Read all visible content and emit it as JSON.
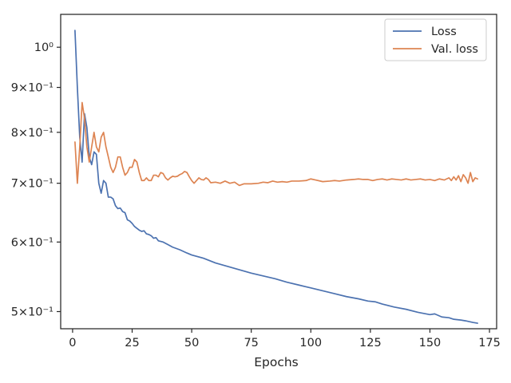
{
  "chart_data": {
    "type": "line",
    "title": "",
    "xlabel": "Epochs",
    "ylabel": "",
    "yscale": "log",
    "xlim": [
      -5,
      178
    ],
    "ylim": [
      0.478,
      1.09
    ],
    "x_ticks": [
      0,
      25,
      50,
      75,
      100,
      125,
      150,
      175
    ],
    "x_tick_labels": [
      "0",
      "25",
      "50",
      "75",
      "100",
      "125",
      "150",
      "175"
    ],
    "y_ticks": [
      0.5,
      0.6,
      0.7,
      0.8,
      0.9,
      1.0
    ],
    "y_tick_labels": [
      "5×10⁻¹",
      "6×10⁻¹",
      "7×10⁻¹",
      "8×10⁻¹",
      "9×10⁻¹",
      "10⁰"
    ],
    "grid": false,
    "legend": {
      "position": "top-right",
      "entries": [
        "Loss",
        "Val. loss"
      ]
    },
    "series": [
      {
        "name": "Loss",
        "color": "#4c72b0",
        "x": [
          1,
          2,
          3,
          4,
          5,
          6,
          7,
          8,
          9,
          10,
          11,
          12,
          13,
          14,
          15,
          16,
          17,
          18,
          19,
          20,
          21,
          22,
          23,
          24,
          25,
          26,
          27,
          28,
          29,
          30,
          31,
          32,
          33,
          34,
          35,
          36,
          38,
          40,
          42,
          45,
          48,
          50,
          55,
          60,
          65,
          70,
          75,
          80,
          85,
          90,
          95,
          100,
          105,
          110,
          115,
          120,
          124,
          127,
          130,
          135,
          140,
          145,
          150,
          152,
          155,
          158,
          160,
          163,
          165,
          168,
          170
        ],
        "y": [
          1.045,
          0.9,
          0.79,
          0.74,
          0.84,
          0.81,
          0.75,
          0.735,
          0.76,
          0.755,
          0.7,
          0.682,
          0.705,
          0.7,
          0.675,
          0.675,
          0.672,
          0.66,
          0.655,
          0.656,
          0.65,
          0.648,
          0.636,
          0.634,
          0.63,
          0.625,
          0.622,
          0.619,
          0.617,
          0.618,
          0.613,
          0.612,
          0.61,
          0.606,
          0.607,
          0.602,
          0.6,
          0.596,
          0.592,
          0.588,
          0.583,
          0.58,
          0.575,
          0.568,
          0.563,
          0.558,
          0.553,
          0.549,
          0.545,
          0.54,
          0.536,
          0.532,
          0.528,
          0.524,
          0.52,
          0.517,
          0.514,
          0.513,
          0.51,
          0.506,
          0.503,
          0.499,
          0.496,
          0.497,
          0.493,
          0.492,
          0.49,
          0.489,
          0.488,
          0.486,
          0.485
        ]
      },
      {
        "name": "Val. loss",
        "color": "#dd8452",
        "x": [
          1,
          2,
          3,
          4,
          5,
          6,
          7,
          8,
          9,
          10,
          11,
          12,
          13,
          14,
          15,
          16,
          17,
          18,
          19,
          20,
          21,
          22,
          23,
          24,
          25,
          26,
          27,
          28,
          29,
          30,
          31,
          32,
          33,
          34,
          35,
          36,
          37,
          38,
          39,
          40,
          41,
          42,
          43,
          44,
          45,
          46,
          47,
          48,
          49,
          50,
          51,
          52,
          53,
          54,
          55,
          56,
          57,
          58,
          60,
          62,
          64,
          66,
          68,
          70,
          72,
          75,
          78,
          80,
          82,
          84,
          86,
          88,
          90,
          92,
          95,
          98,
          100,
          102,
          105,
          108,
          110,
          112,
          115,
          118,
          120,
          122,
          124,
          126,
          128,
          130,
          132,
          134,
          136,
          138,
          140,
          142,
          144,
          146,
          148,
          150,
          152,
          154,
          156,
          158,
          159,
          160,
          161,
          162,
          163,
          164,
          165,
          166,
          167,
          168,
          169,
          170
        ],
        "y": [
          0.78,
          0.7,
          0.77,
          0.865,
          0.83,
          0.77,
          0.74,
          0.77,
          0.8,
          0.77,
          0.76,
          0.79,
          0.8,
          0.77,
          0.75,
          0.73,
          0.72,
          0.73,
          0.75,
          0.75,
          0.73,
          0.715,
          0.72,
          0.73,
          0.73,
          0.745,
          0.74,
          0.72,
          0.705,
          0.705,
          0.71,
          0.705,
          0.705,
          0.715,
          0.715,
          0.712,
          0.72,
          0.718,
          0.71,
          0.706,
          0.71,
          0.713,
          0.712,
          0.713,
          0.716,
          0.718,
          0.722,
          0.72,
          0.712,
          0.705,
          0.7,
          0.705,
          0.71,
          0.707,
          0.706,
          0.71,
          0.707,
          0.701,
          0.702,
          0.7,
          0.704,
          0.7,
          0.702,
          0.696,
          0.699,
          0.699,
          0.7,
          0.702,
          0.701,
          0.704,
          0.702,
          0.703,
          0.702,
          0.704,
          0.704,
          0.705,
          0.708,
          0.706,
          0.703,
          0.704,
          0.705,
          0.704,
          0.706,
          0.707,
          0.708,
          0.707,
          0.707,
          0.705,
          0.707,
          0.708,
          0.706,
          0.708,
          0.707,
          0.706,
          0.708,
          0.706,
          0.707,
          0.708,
          0.706,
          0.707,
          0.705,
          0.708,
          0.706,
          0.71,
          0.705,
          0.712,
          0.706,
          0.714,
          0.703,
          0.716,
          0.71,
          0.7,
          0.72,
          0.703,
          0.71,
          0.708
        ]
      }
    ]
  }
}
